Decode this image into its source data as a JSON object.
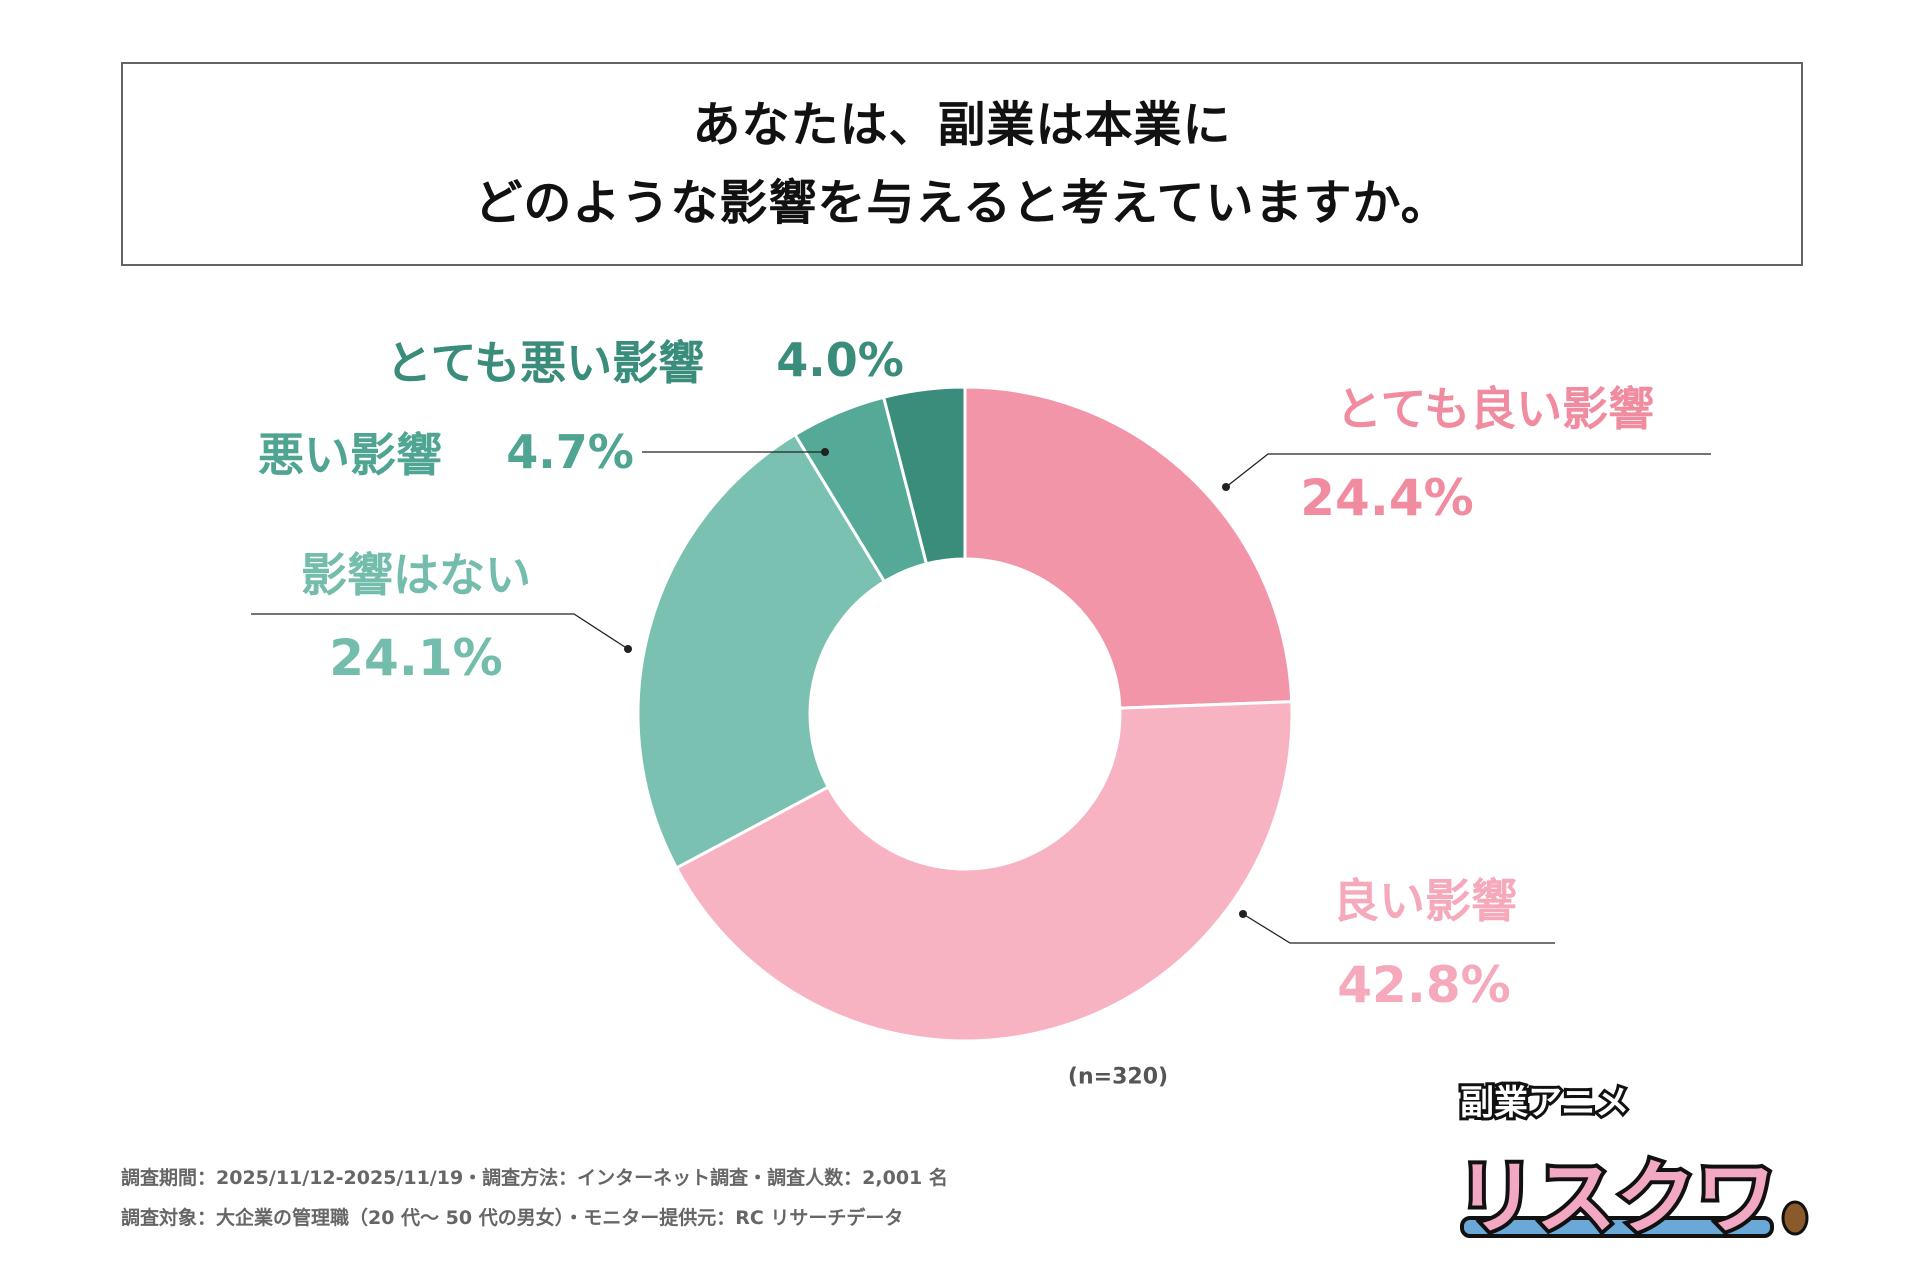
{
  "title": {
    "line1": "あなたは、副業は本業に",
    "line2": "どのような影響を与えると考えていますか。"
  },
  "chart_data": {
    "type": "pie",
    "donut": true,
    "start": "top",
    "direction": "clockwise",
    "slices": [
      {
        "name": "とても良い影響",
        "value": 24.4,
        "label": "24.4%",
        "color": "#F295A8"
      },
      {
        "name": "良い影響",
        "value": 42.8,
        "label": "42.8%",
        "color": "#F8B3C3"
      },
      {
        "name": "影響はない",
        "value": 24.1,
        "label": "24.1%",
        "color": "#7BC1B2"
      },
      {
        "name": "悪い影響",
        "value": 4.7,
        "label": "4.7%",
        "color": "#55AA97"
      },
      {
        "name": "とても悪い影響",
        "value": 4.0,
        "label": "4.0%",
        "color": "#3A8C7B"
      }
    ],
    "note": "(n=320)"
  },
  "footer": {
    "line1": "調査期間：2025/11/12-2025/11/19・調査方法：インターネット調査・調査人数：2,001 名",
    "line2": "調査対象：大企業の管理職（20 代～ 50 代の男女）・モニター提供元：RC リサーチデータ"
  },
  "logo": {
    "small": "副業アニメ",
    "big": "リスクワ"
  }
}
